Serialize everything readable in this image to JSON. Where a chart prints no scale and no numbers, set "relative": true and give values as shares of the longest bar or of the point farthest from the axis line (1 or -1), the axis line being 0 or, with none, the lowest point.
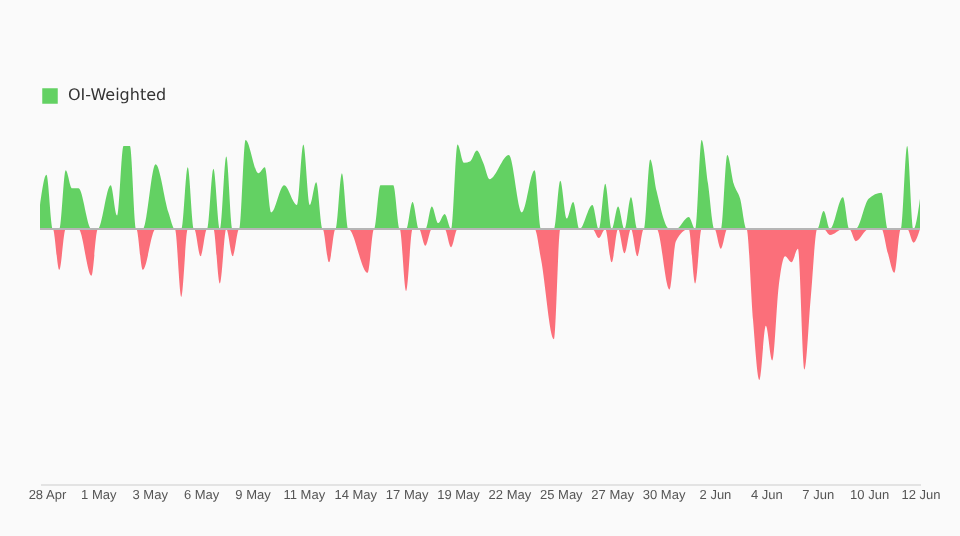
{
  "chart_data": {
    "type": "area",
    "relative": true,
    "legend": "top",
    "x": [
      "--04-28T00:00",
      "--04-28T08:00",
      "--04-28T16:00",
      "--04-29T00:00",
      "--04-29T08:00",
      "--04-29T16:00",
      "--04-30T00:00",
      "--04-30T16:00",
      "--05-01T00:00",
      "--05-01T16:00",
      "--05-02T00:00",
      "--05-02T08:00",
      "--05-02T16:00",
      "--05-03T00:00",
      "--05-03T08:00",
      "--05-04T00:00",
      "--05-04T16:00",
      "--05-05T00:00",
      "--05-05T08:00",
      "--05-05T16:00",
      "--05-06T00:00",
      "--05-06T08:00",
      "--05-06T16:00",
      "--05-07T00:00",
      "--05-07T08:00",
      "--05-07T16:00",
      "--05-08T00:00",
      "--05-08T08:00",
      "--05-08T16:00",
      "--05-09T08:00",
      "--05-09T16:00",
      "--05-10T00:00",
      "--05-10T16:00",
      "--05-11T08:00",
      "--05-11T16:00",
      "--05-12T00:00",
      "--05-12T08:00",
      "--05-12T16:00",
      "--05-13T00:00",
      "--05-13T08:00",
      "--05-13T16:00",
      "--05-14T00:00",
      "--05-15T00:00",
      "--05-15T08:00",
      "--05-15T16:00",
      "--05-16T08:00",
      "--05-16T16:00",
      "--05-17T00:00",
      "--05-17T08:00",
      "--05-17T16:00",
      "--05-18T00:00",
      "--05-18T08:00",
      "--05-18T16:00",
      "--05-19T00:00",
      "--05-19T08:00",
      "--05-19T16:00",
      "--05-20T00:00",
      "--05-20T08:00",
      "--05-20T16:00",
      "--05-21T00:00",
      "--05-21T08:00",
      "--05-22T08:00",
      "--05-23T00:00",
      "--05-23T16:00",
      "--05-24T00:00",
      "--05-24T16:00",
      "--05-25T00:00",
      "--05-25T08:00",
      "--05-25T16:00",
      "--05-26T00:00",
      "--05-26T16:00",
      "--05-27T00:00",
      "--05-27T08:00",
      "--05-27T16:00",
      "--05-28T00:00",
      "--05-28T08:00",
      "--05-28T16:00",
      "--05-29T00:00",
      "--05-29T08:00",
      "--05-29T16:00",
      "--05-30T00:00",
      "--05-30T16:00",
      "--05-31T00:00",
      "--05-31T16:00",
      "--06-01T00:00",
      "--06-01T08:00",
      "--06-01T16:00",
      "--06-02T00:00",
      "--06-02T08:00",
      "--06-02T16:00",
      "--06-03T00:00",
      "--06-03T08:00",
      "--06-03T16:00",
      "--06-04T00:00",
      "--06-04T08:00",
      "--06-04T16:00",
      "--06-05T00:00",
      "--06-05T08:00",
      "--06-05T16:00",
      "--06-06T00:00",
      "--06-06T08:00",
      "--06-06T16:00",
      "--06-07T00:00",
      "--06-07T08:00",
      "--06-07T16:00",
      "--06-08T00:00",
      "--06-08T16:00",
      "--06-09T00:00",
      "--06-09T08:00",
      "--06-10T00:00",
      "--06-10T16:00",
      "--06-11T00:00",
      "--06-11T08:00",
      "--06-11T16:00",
      "--06-12T00:00",
      "--06-12T08:00",
      "--06-12T16:00"
    ],
    "xlim": [
      "--04-28T00:00",
      "--06-12T16:00"
    ],
    "xticks": [
      {
        "value": "--04-28T08:00",
        "label": "28 Apr"
      },
      {
        "value": "--05-01T00:00",
        "label": "1 May"
      },
      {
        "value": "--05-03T16:00",
        "label": "3 May"
      },
      {
        "value": "--05-06T08:00",
        "label": "6 May"
      },
      {
        "value": "--05-09T00:00",
        "label": "9 May"
      },
      {
        "value": "--05-11T16:00",
        "label": "11 May"
      },
      {
        "value": "--05-14T08:00",
        "label": "14 May"
      },
      {
        "value": "--05-17T00:00",
        "label": "17 May"
      },
      {
        "value": "--05-19T16:00",
        "label": "19 May"
      },
      {
        "value": "--05-22T08:00",
        "label": "22 May"
      },
      {
        "value": "--05-25T00:00",
        "label": "25 May"
      },
      {
        "value": "--05-27T16:00",
        "label": "27 May"
      },
      {
        "value": "--05-30T08:00",
        "label": "30 May"
      },
      {
        "value": "--06-02T00:00",
        "label": "2 Jun"
      },
      {
        "value": "--06-04T16:00",
        "label": "4 Jun"
      },
      {
        "value": "--06-07T08:00",
        "label": "7 Jun"
      },
      {
        "value": "--06-10T00:00",
        "label": "10 Jun"
      },
      {
        "value": "--06-12T16:00",
        "label": "12 Jun"
      }
    ],
    "series": [
      {
        "name": "OI-Weighted",
        "color": "#63d163",
        "values": [
          0.16,
          0.36,
          0,
          0,
          0.39,
          0.27,
          0.27,
          0,
          0,
          0.29,
          0.09,
          0.55,
          0.55,
          0,
          0,
          0.43,
          0.11,
          0,
          0,
          0.41,
          0,
          0,
          0,
          0.4,
          0,
          0.48,
          0,
          0,
          0.59,
          0.37,
          0.41,
          0.11,
          0.29,
          0.16,
          0.56,
          0.16,
          0.31,
          0,
          0,
          0,
          0.37,
          0,
          0,
          0,
          0.29,
          0.29,
          0,
          0,
          0.18,
          0,
          0,
          0.15,
          0.04,
          0.1,
          0,
          0.56,
          0.44,
          0.45,
          0.52,
          0.44,
          0.33,
          0.49,
          0.11,
          0.39,
          0,
          0,
          0.32,
          0.07,
          0.18,
          0,
          0.16,
          0,
          0.3,
          0,
          0.15,
          0,
          0.21,
          0,
          0,
          0.46,
          0.25,
          0,
          0,
          0.08,
          0,
          0.59,
          0.3,
          0,
          0,
          0.49,
          0.3,
          0.2,
          0,
          0,
          0,
          0,
          0,
          0,
          0,
          0,
          0,
          0,
          0,
          0,
          0.12,
          0,
          0.21,
          0,
          0,
          0.2,
          0.24,
          0,
          0,
          0,
          0.55,
          0,
          0.2
        ]
      },
      {
        "color": "#fb6f7a",
        "values": [
          0,
          0,
          0,
          -0.27,
          0,
          0,
          0,
          -0.31,
          0,
          0,
          0,
          0,
          0,
          0,
          -0.27,
          0,
          0,
          0,
          -0.45,
          0,
          0,
          -0.18,
          0,
          0,
          -0.36,
          0,
          -0.18,
          0,
          0,
          0,
          0,
          0,
          0,
          0,
          0,
          0,
          0,
          0,
          -0.22,
          0,
          0,
          0,
          -0.29,
          0,
          0,
          0,
          0,
          -0.41,
          0,
          0,
          -0.11,
          0,
          0,
          0,
          -0.12,
          0,
          0,
          0,
          0,
          0,
          0,
          0,
          0,
          0,
          -0.2,
          -0.73,
          0,
          0,
          0,
          0,
          0,
          -0.06,
          0,
          -0.22,
          0,
          -0.16,
          0,
          -0.18,
          0,
          0,
          0,
          -0.4,
          -0.08,
          0,
          -0.36,
          0,
          0,
          0,
          -0.13,
          0,
          0,
          0,
          0,
          -0.6,
          -1,
          -0.64,
          -0.87,
          -0.38,
          -0.18,
          -0.22,
          -0.13,
          -0.93,
          -0.45,
          0,
          0,
          -0.04,
          0,
          0,
          -0.08,
          0,
          0,
          -0.16,
          -0.29,
          0,
          0,
          -0.09,
          0
        ]
      }
    ]
  }
}
